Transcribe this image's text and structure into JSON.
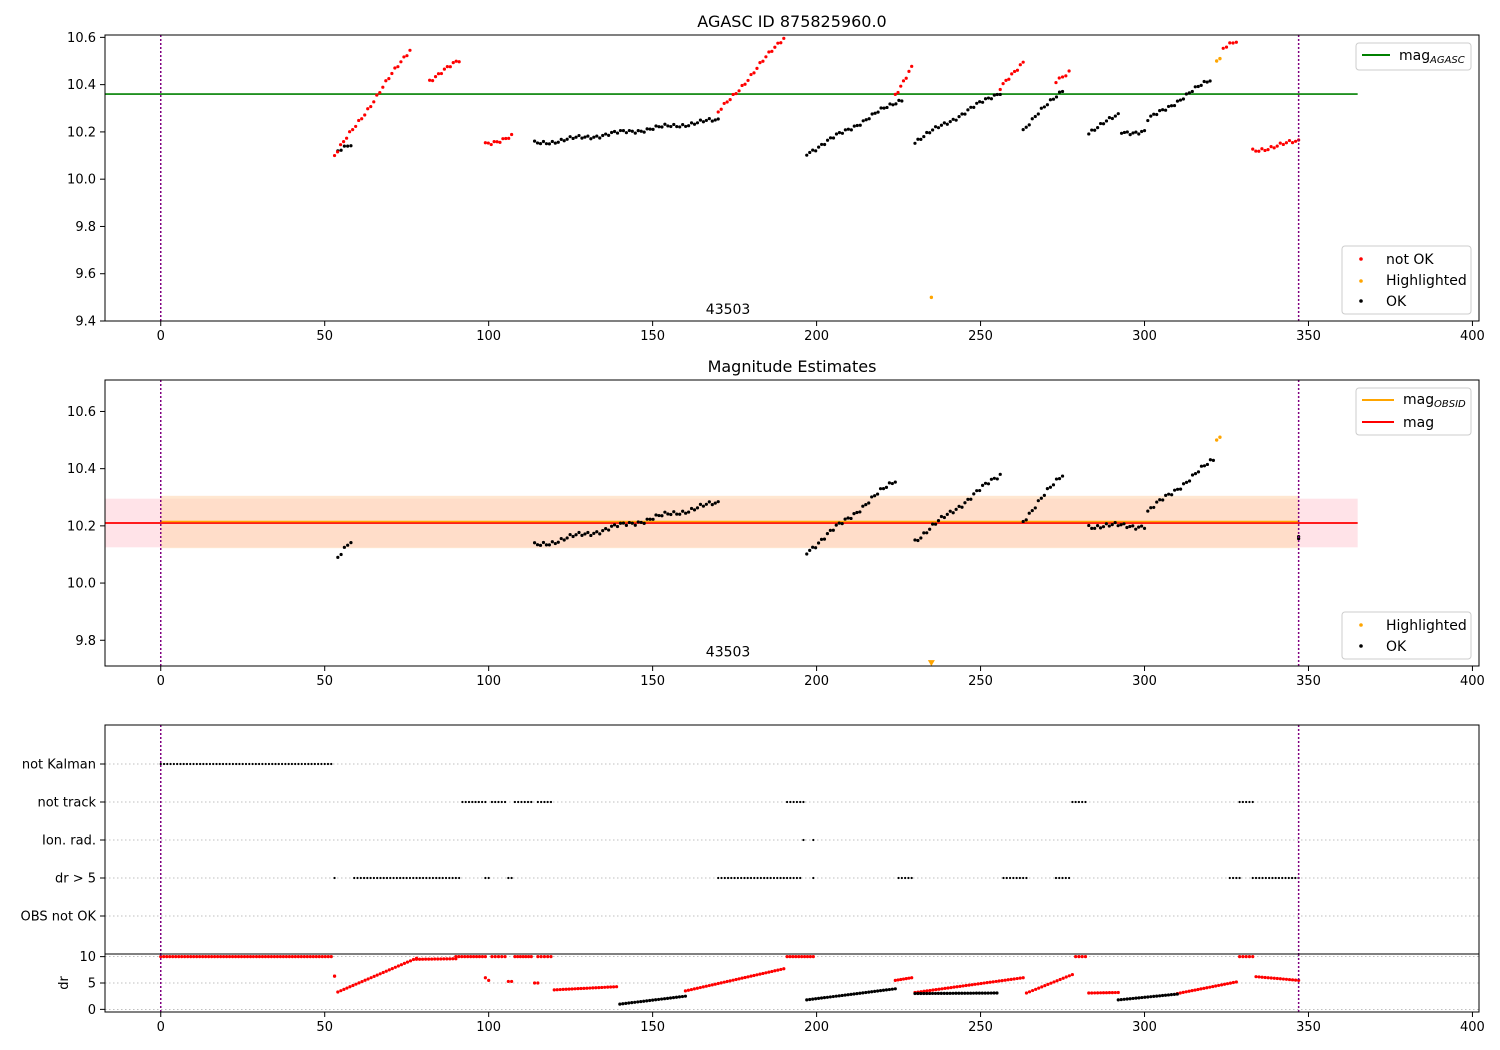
{
  "colors": {
    "ok": "#000000",
    "not_ok": "#ff0000",
    "highlighted": "#ffa500",
    "agasc_line": "#008000",
    "obsid_line": "#ffa500",
    "mag_line": "#ff0000",
    "vline": "#800080",
    "band_pink": "#ffc0cb",
    "band_orange": "#ffdab9"
  },
  "chart_data": [
    {
      "type": "scatter",
      "title": "AGASC ID 875825960.0",
      "xlim": [
        -17,
        402
      ],
      "ylim": [
        9.4,
        10.61
      ],
      "xticks": [
        "0",
        "50",
        "100",
        "150",
        "200",
        "250",
        "300",
        "350",
        "400"
      ],
      "yticks": [
        "9.4",
        "9.6",
        "9.8",
        "10.0",
        "10.2",
        "10.4",
        "10.6"
      ],
      "annotation": "43503",
      "annotation_at": [
        173,
        9.45
      ],
      "vlines": [
        0,
        347
      ],
      "hline": {
        "y": 10.36,
        "x_range": [
          -17,
          365
        ]
      },
      "legend_lines": [
        {
          "label": "mag",
          "sub": "AGASC"
        }
      ],
      "legend_points": [
        {
          "label": "not OK",
          "color_key": "not_ok"
        },
        {
          "label": "Highlighted",
          "color_key": "highlighted"
        },
        {
          "label": "OK",
          "color_key": "ok"
        }
      ],
      "segments_ok": [
        [
          54,
          58,
          10.12,
          10.14
        ],
        [
          114,
          170,
          10.15,
          10.25
        ],
        [
          197,
          226,
          10.11,
          10.34
        ],
        [
          230,
          256,
          10.16,
          10.37
        ],
        [
          263,
          275,
          10.21,
          10.38
        ],
        [
          283,
          292,
          10.2,
          10.27
        ],
        [
          293,
          300,
          10.2,
          10.2
        ],
        [
          301,
          320,
          10.25,
          10.42
        ]
      ],
      "segments_not_ok": [
        [
          53,
          76,
          10.1,
          10.55
        ],
        [
          82,
          91,
          10.42,
          10.5
        ],
        [
          99,
          107,
          10.15,
          10.18
        ],
        [
          170,
          190,
          10.28,
          10.6
        ],
        [
          224,
          229,
          10.36,
          10.47
        ],
        [
          256,
          263,
          10.38,
          10.5
        ],
        [
          273,
          277,
          10.42,
          10.45
        ],
        [
          324,
          328,
          10.55,
          10.58
        ],
        [
          333,
          347,
          10.12,
          10.16
        ]
      ],
      "highlighted_points": [
        [
          235,
          9.5
        ],
        [
          322,
          10.5
        ],
        [
          323,
          10.51
        ]
      ]
    },
    {
      "type": "scatter",
      "title": "Magnitude Estimates",
      "xlim": [
        -17,
        402
      ],
      "ylim": [
        9.71,
        10.71
      ],
      "xticks": [
        "0",
        "50",
        "100",
        "150",
        "200",
        "250",
        "300",
        "350",
        "400"
      ],
      "yticks": [
        "9.8",
        "10.0",
        "10.2",
        "10.4",
        "10.6"
      ],
      "annotation": "43503",
      "annotation_at": [
        173,
        9.76
      ],
      "vlines": [
        0,
        347
      ],
      "mag_line": {
        "y": 10.21,
        "x_range": [
          -17,
          365
        ]
      },
      "band_mag": [
        10.125,
        10.295
      ],
      "band_obsid": [
        10.122,
        10.305,
        0,
        347
      ],
      "legend_lines": [
        {
          "label": "mag",
          "sub": "OBSID",
          "color_key": "obsid_line"
        },
        {
          "label": "mag",
          "sub": "",
          "color_key": "mag_line"
        }
      ],
      "legend_points": [
        {
          "label": "Highlighted",
          "color_key": "highlighted"
        },
        {
          "label": "OK",
          "color_key": "ok"
        }
      ],
      "segments_ok": [
        [
          54,
          58,
          10.09,
          10.14
        ],
        [
          114,
          170,
          10.13,
          10.28
        ],
        [
          197,
          224,
          10.11,
          10.36
        ],
        [
          230,
          256,
          10.15,
          10.38
        ],
        [
          263,
          275,
          10.22,
          10.38
        ],
        [
          283,
          300,
          10.2,
          10.2
        ],
        [
          301,
          321,
          10.25,
          10.43
        ],
        [
          347,
          347,
          10.16,
          10.16
        ]
      ],
      "highlighted_points": [
        [
          322,
          10.5
        ],
        [
          323,
          10.51
        ]
      ],
      "highlighted_markers": [
        [
          235,
          9.72
        ]
      ]
    },
    {
      "type": "scatter",
      "title": "",
      "xlim": [
        -17,
        402
      ],
      "categories": [
        "not Kalman",
        "not track",
        "Ion. rad.",
        "dr > 5",
        "OBS not OK"
      ],
      "vlines": [
        0,
        347
      ],
      "flags": {
        "not Kalman": [
          [
            0,
            52
          ]
        ],
        "not track": [
          [
            92,
            99
          ],
          [
            101,
            105
          ],
          [
            108,
            113
          ],
          [
            115,
            119
          ],
          [
            191,
            196
          ],
          [
            278,
            282
          ],
          [
            329,
            333
          ]
        ],
        "Ion. rad.": [
          [
            196,
            196
          ],
          [
            199,
            199
          ]
        ],
        "dr > 5": [
          [
            53,
            53
          ],
          [
            59,
            91
          ],
          [
            99,
            100
          ],
          [
            106,
            107
          ],
          [
            170,
            195
          ],
          [
            199,
            199
          ],
          [
            225,
            229
          ],
          [
            257,
            264
          ],
          [
            273,
            277
          ],
          [
            326,
            329
          ],
          [
            333,
            347
          ]
        ],
        "OBS not OK": []
      }
    },
    {
      "type": "scatter",
      "title": "",
      "ylabel": "dr",
      "xlim": [
        -17,
        402
      ],
      "ylim": [
        -0.5,
        10.5
      ],
      "xticks": [
        "0",
        "50",
        "100",
        "150",
        "200",
        "250",
        "300",
        "350",
        "400"
      ],
      "yticks": [
        "0",
        "5",
        "10"
      ],
      "vlines": [
        0,
        347
      ],
      "red_segments": [
        [
          0,
          52,
          10,
          10
        ],
        [
          53,
          53,
          6.3,
          6.3
        ],
        [
          54,
          78,
          3.3,
          9.7
        ],
        [
          78,
          90,
          9.5,
          9.6
        ],
        [
          90,
          99,
          10,
          10
        ],
        [
          99,
          100,
          6.0,
          5.5
        ],
        [
          101,
          105,
          10,
          10
        ],
        [
          106,
          107,
          5.3,
          5.3
        ],
        [
          108,
          113,
          10,
          10
        ],
        [
          114,
          115,
          5.0,
          5.0
        ],
        [
          115,
          119,
          10,
          10
        ],
        [
          120,
          139,
          3.7,
          4.3
        ],
        [
          160,
          190,
          3.5,
          7.7
        ],
        [
          191,
          199,
          10,
          10
        ],
        [
          224,
          229,
          5.5,
          6.0
        ],
        [
          230,
          263,
          3.2,
          6.0
        ],
        [
          264,
          278,
          3.1,
          6.6
        ],
        [
          279,
          282,
          10,
          10
        ],
        [
          283,
          292,
          3.1,
          3.2
        ],
        [
          310,
          328,
          3.0,
          5.2
        ],
        [
          329,
          333,
          10,
          10
        ],
        [
          334,
          347,
          6.2,
          5.5
        ]
      ],
      "black_segments": [
        [
          140,
          160,
          1.0,
          2.5
        ],
        [
          197,
          224,
          1.8,
          3.9
        ],
        [
          230,
          255,
          3.0,
          3.1
        ],
        [
          292,
          310,
          1.8,
          2.9
        ]
      ]
    }
  ]
}
